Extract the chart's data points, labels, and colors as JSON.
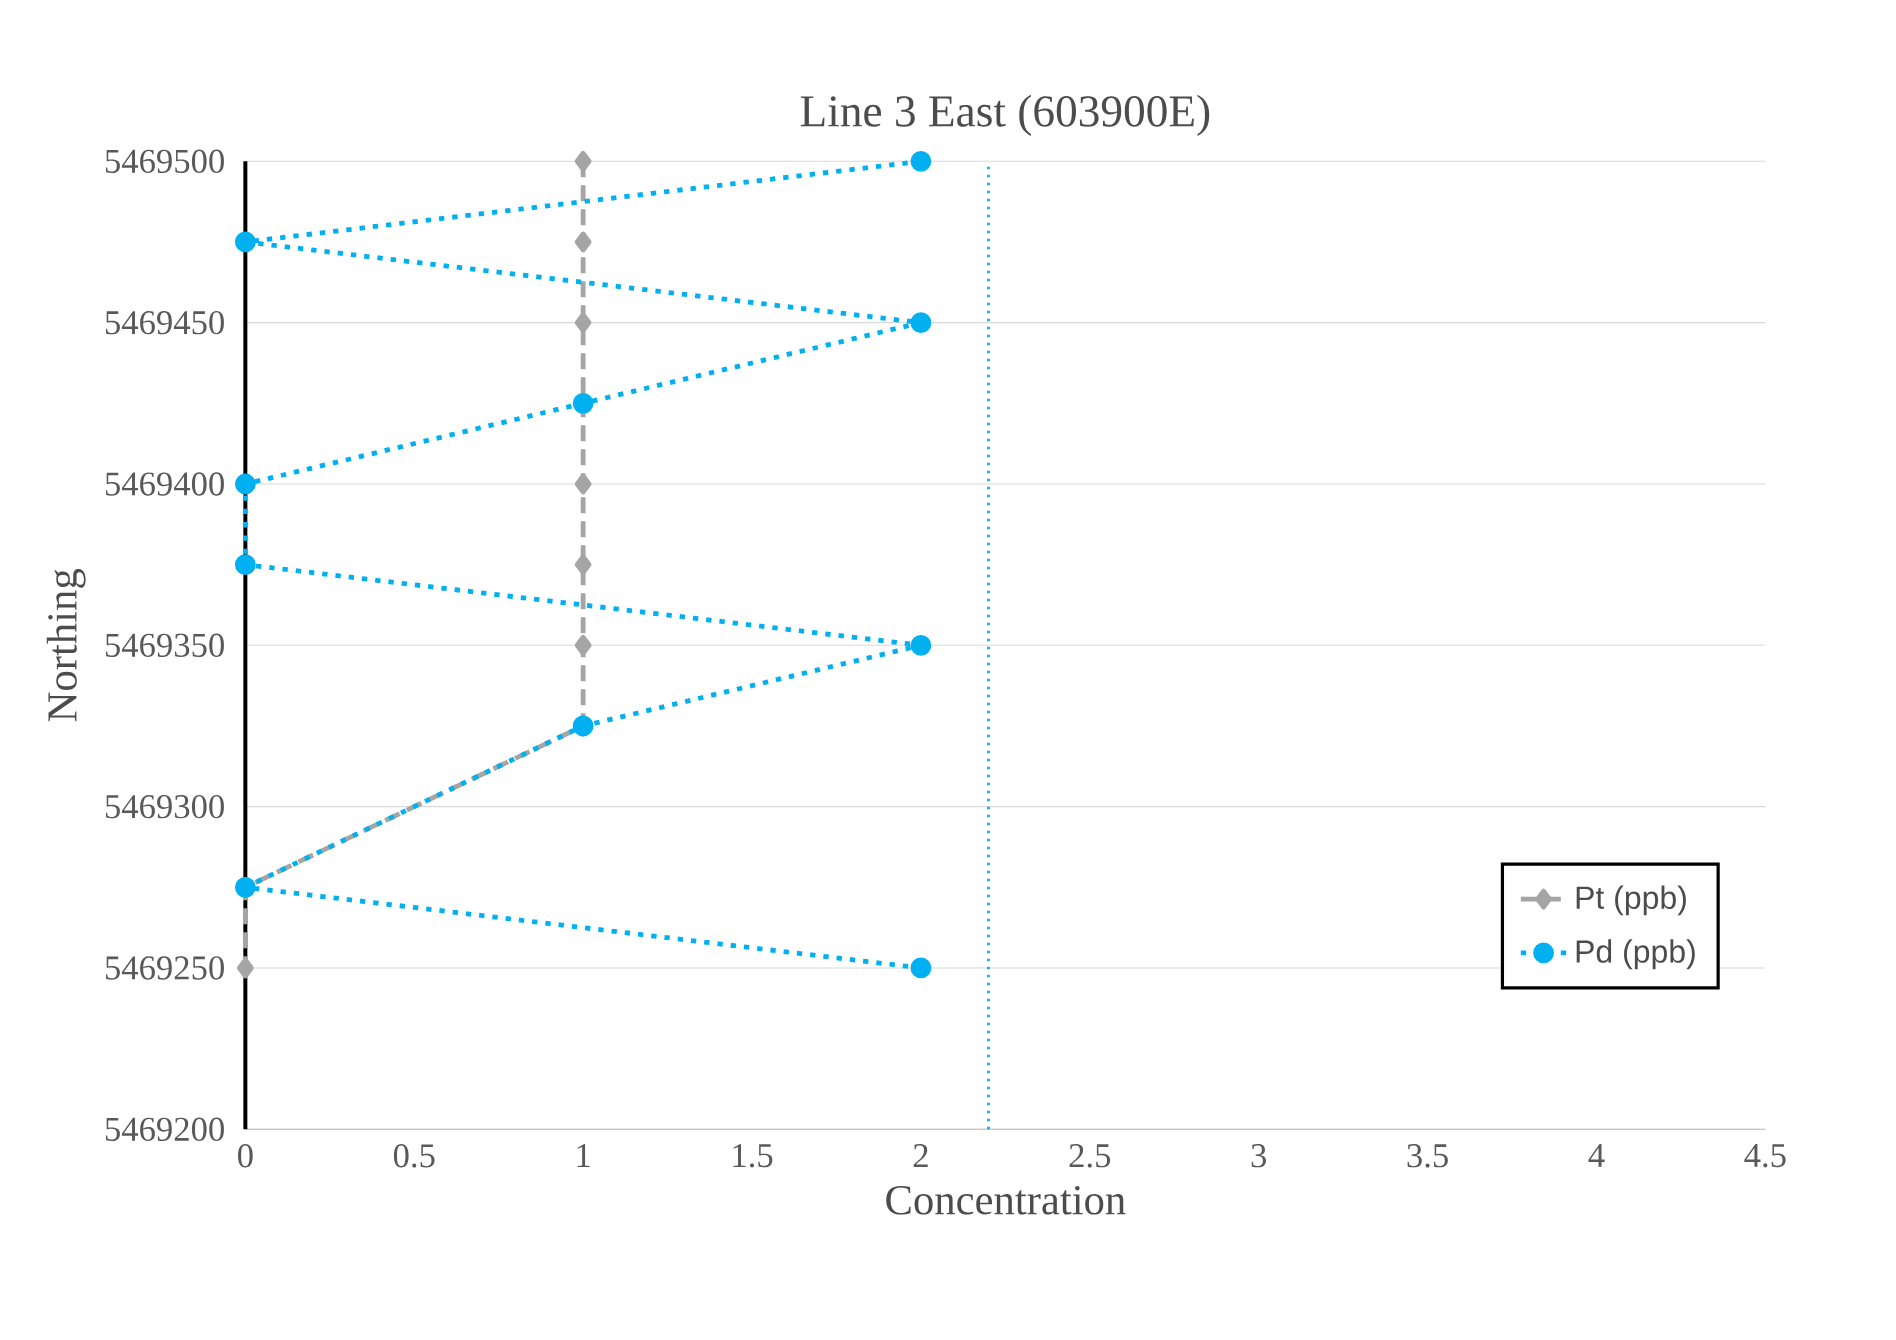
{
  "chart_data": {
    "type": "line",
    "title": "Line 3 East (603900E)",
    "xlabel": "Concentration",
    "ylabel": "Northing",
    "series": [
      {
        "name": "Pt (ppb)",
        "color": "#a5a5a5",
        "marker": "diamond",
        "line_style": "dashed",
        "x": [
          1,
          1,
          1,
          1,
          1,
          1,
          1,
          1,
          0,
          0
        ],
        "values": [
          5469500,
          5469475,
          5469450,
          5469425,
          5469400,
          5469375,
          5469350,
          5469325,
          5469275,
          5469250
        ]
      },
      {
        "name": "Pd (ppb)",
        "color": "#00b0f0",
        "marker": "circle",
        "line_style": "dotted",
        "x": [
          2,
          0,
          2,
          1,
          0,
          0,
          2,
          1,
          0,
          2
        ],
        "values": [
          5469500,
          5469475,
          5469450,
          5469425,
          5469400,
          5469375,
          5469350,
          5469325,
          5469275,
          5469250
        ]
      }
    ],
    "xlim": [
      0,
      4.5
    ],
    "xticks": [
      0,
      0.5,
      1,
      1.5,
      2,
      2.5,
      3,
      3.5,
      4,
      4.5
    ],
    "ylim": [
      5469200,
      5469500
    ],
    "yticks": [
      5469200,
      5469250,
      5469300,
      5469350,
      5469400,
      5469450,
      5469500
    ],
    "ref_lines": [
      {
        "axis": "x",
        "value": 2.2,
        "color": "#00b0f0",
        "line_style": "dotted"
      }
    ],
    "grid": "y",
    "legend": "right"
  }
}
